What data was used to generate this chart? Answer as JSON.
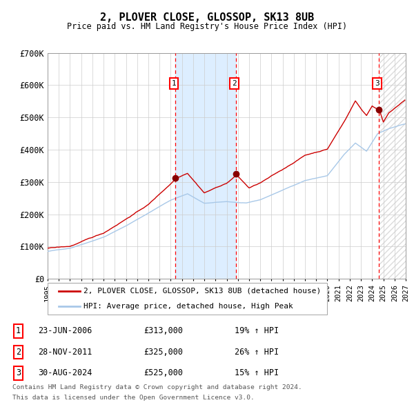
{
  "title": "2, PLOVER CLOSE, GLOSSOP, SK13 8UB",
  "subtitle": "Price paid vs. HM Land Registry's House Price Index (HPI)",
  "ylim": [
    0,
    700000
  ],
  "yticks": [
    0,
    100000,
    200000,
    300000,
    400000,
    500000,
    600000,
    700000
  ],
  "ytick_labels": [
    "£0",
    "£100K",
    "£200K",
    "£300K",
    "£400K",
    "£500K",
    "£600K",
    "£700K"
  ],
  "x_start_year": 1995,
  "x_end_year": 2027,
  "hpi_color": "#a8c8e8",
  "price_color": "#cc0000",
  "marker_color": "#880000",
  "background_color": "#ffffff",
  "grid_color": "#cccccc",
  "shade_color": "#ddeeff",
  "hatch_color": "#cccccc",
  "purchases": [
    {
      "date": "2006-06-23",
      "price": 313000,
      "label": "1"
    },
    {
      "date": "2011-11-28",
      "price": 325000,
      "label": "2"
    },
    {
      "date": "2024-08-30",
      "price": 525000,
      "label": "3"
    }
  ],
  "legend_entries": [
    "2, PLOVER CLOSE, GLOSSOP, SK13 8UB (detached house)",
    "HPI: Average price, detached house, High Peak"
  ],
  "table_rows": [
    {
      "num": "1",
      "date": "23-JUN-2006",
      "price": "£313,000",
      "hpi": "19% ↑ HPI"
    },
    {
      "num": "2",
      "date": "28-NOV-2011",
      "price": "£325,000",
      "hpi": "26% ↑ HPI"
    },
    {
      "num": "3",
      "date": "30-AUG-2024",
      "price": "£525,000",
      "hpi": "15% ↑ HPI"
    }
  ],
  "footnote1": "Contains HM Land Registry data © Crown copyright and database right 2024.",
  "footnote2": "This data is licensed under the Open Government Licence v3.0."
}
